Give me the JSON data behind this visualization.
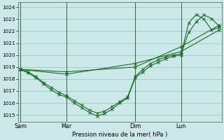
{
  "xlabel": "Pression niveau de la mer( hPa )",
  "bg_color": "#cce8e8",
  "grid_color": "#99ccbb",
  "line_color": "#1a6b2a",
  "vline_color": "#336644",
  "x_ticks_labels": [
    "Sam",
    "Mar",
    "Dim",
    "Lun"
  ],
  "x_ticks_pos": [
    0,
    6,
    15,
    21
  ],
  "xlim": [
    -0.3,
    26.3
  ],
  "ylim": [
    1014.4,
    1024.4
  ],
  "yticks": [
    1015,
    1016,
    1017,
    1018,
    1019,
    1020,
    1021,
    1022,
    1023,
    1024
  ],
  "line1_x": [
    0,
    1,
    2,
    3,
    4,
    5,
    6,
    7,
    8,
    9,
    10,
    11,
    12,
    13,
    14,
    15,
    16,
    17,
    18,
    19,
    20,
    21,
    22,
    23,
    24,
    25,
    26
  ],
  "line1_y": [
    1018.8,
    1018.6,
    1018.2,
    1017.7,
    1017.3,
    1016.9,
    1016.6,
    1016.2,
    1015.8,
    1015.4,
    1015.15,
    1015.3,
    1015.7,
    1016.1,
    1016.5,
    1018.2,
    1018.8,
    1019.3,
    1019.6,
    1019.85,
    1020.0,
    1020.1,
    1021.9,
    1022.8,
    1023.35,
    1023.05,
    1022.4
  ],
  "line2_x": [
    0,
    1,
    2,
    3,
    4,
    5,
    6,
    7,
    8,
    9,
    10,
    11,
    12,
    13,
    14,
    15,
    16,
    17,
    18,
    19,
    20,
    21,
    22,
    23,
    24,
    25,
    26
  ],
  "line2_y": [
    1018.8,
    1018.5,
    1018.1,
    1017.6,
    1017.1,
    1016.7,
    1016.5,
    1016.0,
    1015.6,
    1015.2,
    1014.9,
    1015.1,
    1015.5,
    1016.0,
    1016.4,
    1018.1,
    1018.6,
    1019.1,
    1019.4,
    1019.7,
    1019.9,
    1020.0,
    1022.7,
    1023.4,
    1023.0,
    1022.1,
    1022.3
  ],
  "line3_x": [
    0,
    6,
    15,
    21,
    26
  ],
  "line3_y": [
    1018.8,
    1018.6,
    1019.0,
    1020.7,
    1022.5
  ],
  "line4_x": [
    0,
    6,
    15,
    21,
    26
  ],
  "line4_y": [
    1018.8,
    1018.4,
    1019.3,
    1020.3,
    1022.1
  ]
}
